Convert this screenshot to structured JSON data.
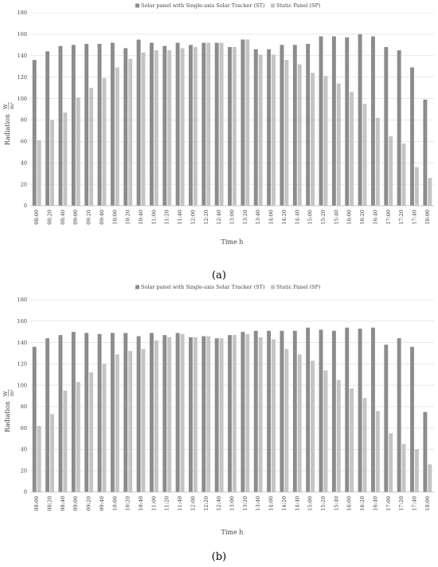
{
  "chart_data": [
    {
      "type": "bar",
      "panel_label": "(a)",
      "xlabel": "Time h",
      "ylabel": "Radiation",
      "ylabel_unit_num": "W",
      "ylabel_unit_den": "m²",
      "ylim": [
        0,
        180
      ],
      "yticks": [
        0,
        20,
        40,
        60,
        80,
        100,
        120,
        140,
        160,
        180
      ],
      "grid": "horizontal",
      "legend_position": "top-center",
      "categories": [
        "08:00",
        "08:20",
        "08:40",
        "09:00",
        "09:20",
        "09:40",
        "10:00",
        "10:20",
        "10:40",
        "11:00",
        "11:20",
        "11:40",
        "12:00",
        "12:20",
        "12:40",
        "13:00",
        "13:20",
        "13:40",
        "14:00",
        "14:20",
        "14:40",
        "15:00",
        "15:20",
        "15:40",
        "16:00",
        "16:20",
        "16:40",
        "17:00",
        "17:20",
        "17:40",
        "18:00"
      ],
      "series": [
        {
          "name": "Solar panel with Single-axis Solar Tracker (ST)",
          "color": "#8c8c8c",
          "values": [
            136,
            144,
            149,
            150,
            151,
            151,
            152,
            147,
            155,
            152,
            149,
            152,
            150,
            152,
            152,
            148,
            155,
            146,
            146,
            150,
            150,
            151,
            158,
            158,
            157,
            160,
            158,
            148,
            145,
            129,
            99
          ]
        },
        {
          "name": "Static Panel (SP)",
          "color": "#c4c4c4",
          "values": [
            61,
            80,
            87,
            101,
            110,
            119,
            129,
            137,
            143,
            145,
            145,
            147,
            148,
            152,
            152,
            148,
            155,
            141,
            141,
            136,
            132,
            124,
            121,
            114,
            106,
            95,
            82,
            65,
            58,
            36,
            26
          ]
        }
      ]
    },
    {
      "type": "bar",
      "panel_label": "(b)",
      "xlabel": "Time h",
      "ylabel": "Radiation",
      "ylabel_unit_num": "W",
      "ylabel_unit_den": "m²",
      "ylim": [
        0,
        180
      ],
      "yticks": [
        0,
        20,
        40,
        60,
        80,
        100,
        120,
        140,
        160,
        180
      ],
      "grid": "horizontal",
      "legend_position": "top-center",
      "categories": [
        "08:00",
        "08:20",
        "08:40",
        "09:00",
        "09:20",
        "09:40",
        "10:00",
        "10:20",
        "10:40",
        "11:00",
        "11:20",
        "11:40",
        "12:00",
        "12:20",
        "12:40",
        "13:00",
        "13:20",
        "13:40",
        "14:00",
        "14:20",
        "14:40",
        "15:00",
        "15:20",
        "15:40",
        "16:00",
        "16:20",
        "16:40",
        "17:00",
        "17:20",
        "17:40",
        "18:00"
      ],
      "series": [
        {
          "name": "Solar panel with Single-axis Solar Tracker (ST)",
          "color": "#8c8c8c",
          "values": [
            136,
            144,
            147,
            150,
            149,
            148,
            149,
            149,
            146,
            149,
            147,
            149,
            145,
            146,
            144,
            147,
            150,
            151,
            151,
            151,
            151,
            154,
            152,
            151,
            154,
            153,
            154,
            138,
            144,
            136,
            75
          ]
        },
        {
          "name": "Static Panel (SP)",
          "color": "#c4c4c4",
          "values": [
            62,
            73,
            95,
            103,
            112,
            120,
            129,
            132,
            134,
            142,
            145,
            148,
            145,
            146,
            144,
            147,
            148,
            145,
            143,
            134,
            129,
            123,
            114,
            105,
            97,
            88,
            76,
            55,
            45,
            40,
            26
          ]
        }
      ]
    }
  ]
}
